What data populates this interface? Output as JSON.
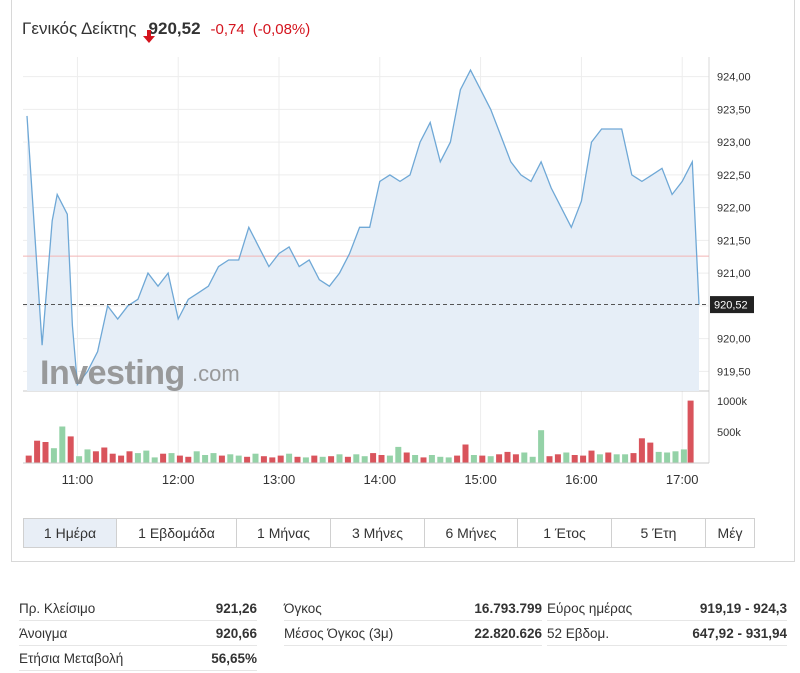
{
  "header": {
    "name": "Γενικός Δείκτης",
    "price": "920,52",
    "change": "-0,74",
    "change_pct": "(-0,08%)",
    "direction": "down",
    "down_color": "#d4141e"
  },
  "chart": {
    "watermark_main": "Investing",
    "watermark_suffix": ".com",
    "current_label": "920,52",
    "y_ticks": [
      "924,00",
      "923,50",
      "923,00",
      "922,50",
      "922,00",
      "921,50",
      "921,00",
      "920,50",
      "920,00",
      "919,50"
    ],
    "volume_ticks": [
      "1000k",
      "500k"
    ],
    "x_ticks": [
      "11:00",
      "12:00",
      "13:00",
      "14:00",
      "15:00",
      "16:00",
      "17:00"
    ],
    "line_color": "#6fa8d6",
    "fill_color": "#e6eef7",
    "prev_close_line_color": "#f2b4b4",
    "up_color": "#94d2a7",
    "down_color": "#d9545c"
  },
  "chart_data": {
    "type": "line",
    "title": "Γενικός Δείκτης",
    "x_unit": "time",
    "y_range": [
      919.2,
      924.3
    ],
    "previous_close": 921.26,
    "last": 920.52,
    "x": [
      "10:30",
      "10:39",
      "10:45",
      "10:48",
      "10:54",
      "10:57",
      "11:00",
      "11:06",
      "11:12",
      "11:18",
      "11:24",
      "11:30",
      "11:36",
      "11:42",
      "11:48",
      "11:54",
      "12:00",
      "12:06",
      "12:12",
      "12:18",
      "12:24",
      "12:30",
      "12:36",
      "12:42",
      "12:48",
      "12:54",
      "13:00",
      "13:06",
      "13:12",
      "13:18",
      "13:24",
      "13:30",
      "13:36",
      "13:42",
      "13:48",
      "13:54",
      "14:00",
      "14:06",
      "14:12",
      "14:18",
      "14:24",
      "14:30",
      "14:36",
      "14:42",
      "14:48",
      "14:54",
      "15:00",
      "15:06",
      "15:12",
      "15:18",
      "15:24",
      "15:30",
      "15:36",
      "15:42",
      "15:48",
      "15:54",
      "16:00",
      "16:06",
      "16:12",
      "16:18",
      "16:24",
      "16:30",
      "16:36",
      "16:42",
      "16:48",
      "16:54",
      "17:00",
      "17:06",
      "17:10"
    ],
    "values": [
      923.4,
      919.9,
      921.8,
      922.2,
      921.9,
      920.2,
      919.3,
      919.5,
      919.8,
      920.5,
      920.3,
      920.5,
      920.6,
      921.0,
      920.8,
      921.0,
      920.3,
      920.6,
      920.7,
      920.8,
      921.1,
      921.2,
      921.2,
      921.7,
      921.4,
      921.1,
      921.3,
      921.4,
      921.1,
      921.2,
      920.9,
      920.8,
      921.0,
      921.3,
      921.7,
      921.7,
      922.4,
      922.5,
      922.4,
      922.5,
      923.0,
      923.3,
      922.7,
      923.0,
      923.8,
      924.1,
      923.8,
      923.5,
      923.1,
      922.7,
      922.5,
      922.4,
      922.7,
      922.3,
      922.0,
      921.7,
      922.1,
      923.0,
      923.2,
      923.2,
      923.2,
      922.5,
      922.4,
      922.5,
      922.6,
      922.2,
      922.4,
      922.7,
      920.52
    ],
    "volume": {
      "unit": "shares",
      "bars": [
        {
          "t": "10:31",
          "v": 120,
          "dir": "down"
        },
        {
          "t": "10:36",
          "v": 360,
          "dir": "down"
        },
        {
          "t": "10:41",
          "v": 340,
          "dir": "down"
        },
        {
          "t": "10:46",
          "v": 240,
          "dir": "up"
        },
        {
          "t": "10:51",
          "v": 590,
          "dir": "up"
        },
        {
          "t": "10:56",
          "v": 430,
          "dir": "down"
        },
        {
          "t": "11:01",
          "v": 110,
          "dir": "up"
        },
        {
          "t": "11:06",
          "v": 220,
          "dir": "up"
        },
        {
          "t": "11:11",
          "v": 190,
          "dir": "down"
        },
        {
          "t": "11:16",
          "v": 250,
          "dir": "down"
        },
        {
          "t": "11:21",
          "v": 150,
          "dir": "down"
        },
        {
          "t": "11:26",
          "v": 120,
          "dir": "down"
        },
        {
          "t": "11:31",
          "v": 190,
          "dir": "down"
        },
        {
          "t": "11:36",
          "v": 160,
          "dir": "up"
        },
        {
          "t": "11:41",
          "v": 200,
          "dir": "up"
        },
        {
          "t": "11:46",
          "v": 90,
          "dir": "up"
        },
        {
          "t": "11:51",
          "v": 150,
          "dir": "down"
        },
        {
          "t": "11:56",
          "v": 160,
          "dir": "up"
        },
        {
          "t": "12:01",
          "v": 120,
          "dir": "down"
        },
        {
          "t": "12:06",
          "v": 100,
          "dir": "down"
        },
        {
          "t": "12:11",
          "v": 190,
          "dir": "up"
        },
        {
          "t": "12:16",
          "v": 130,
          "dir": "up"
        },
        {
          "t": "12:21",
          "v": 160,
          "dir": "up"
        },
        {
          "t": "12:26",
          "v": 120,
          "dir": "down"
        },
        {
          "t": "12:31",
          "v": 140,
          "dir": "up"
        },
        {
          "t": "12:36",
          "v": 120,
          "dir": "up"
        },
        {
          "t": "12:41",
          "v": 100,
          "dir": "down"
        },
        {
          "t": "12:46",
          "v": 150,
          "dir": "up"
        },
        {
          "t": "12:51",
          "v": 110,
          "dir": "down"
        },
        {
          "t": "12:56",
          "v": 90,
          "dir": "down"
        },
        {
          "t": "13:01",
          "v": 120,
          "dir": "down"
        },
        {
          "t": "13:06",
          "v": 150,
          "dir": "up"
        },
        {
          "t": "13:11",
          "v": 100,
          "dir": "down"
        },
        {
          "t": "13:16",
          "v": 90,
          "dir": "up"
        },
        {
          "t": "13:21",
          "v": 120,
          "dir": "down"
        },
        {
          "t": "13:26",
          "v": 100,
          "dir": "up"
        },
        {
          "t": "13:31",
          "v": 110,
          "dir": "down"
        },
        {
          "t": "13:36",
          "v": 140,
          "dir": "up"
        },
        {
          "t": "13:41",
          "v": 100,
          "dir": "down"
        },
        {
          "t": "13:46",
          "v": 140,
          "dir": "up"
        },
        {
          "t": "13:51",
          "v": 110,
          "dir": "up"
        },
        {
          "t": "13:56",
          "v": 160,
          "dir": "down"
        },
        {
          "t": "14:01",
          "v": 130,
          "dir": "down"
        },
        {
          "t": "14:06",
          "v": 120,
          "dir": "up"
        },
        {
          "t": "14:11",
          "v": 260,
          "dir": "up"
        },
        {
          "t": "14:16",
          "v": 170,
          "dir": "down"
        },
        {
          "t": "14:21",
          "v": 130,
          "dir": "up"
        },
        {
          "t": "14:26",
          "v": 90,
          "dir": "down"
        },
        {
          "t": "14:31",
          "v": 130,
          "dir": "up"
        },
        {
          "t": "14:36",
          "v": 100,
          "dir": "up"
        },
        {
          "t": "14:41",
          "v": 90,
          "dir": "up"
        },
        {
          "t": "14:46",
          "v": 120,
          "dir": "down"
        },
        {
          "t": "14:51",
          "v": 300,
          "dir": "down"
        },
        {
          "t": "14:56",
          "v": 130,
          "dir": "up"
        },
        {
          "t": "15:01",
          "v": 120,
          "dir": "down"
        },
        {
          "t": "15:06",
          "v": 110,
          "dir": "up"
        },
        {
          "t": "15:11",
          "v": 140,
          "dir": "down"
        },
        {
          "t": "15:16",
          "v": 180,
          "dir": "down"
        },
        {
          "t": "15:21",
          "v": 140,
          "dir": "down"
        },
        {
          "t": "15:26",
          "v": 170,
          "dir": "up"
        },
        {
          "t": "15:31",
          "v": 100,
          "dir": "up"
        },
        {
          "t": "15:36",
          "v": 530,
          "dir": "up"
        },
        {
          "t": "15:41",
          "v": 110,
          "dir": "down"
        },
        {
          "t": "15:46",
          "v": 140,
          "dir": "down"
        },
        {
          "t": "15:51",
          "v": 170,
          "dir": "up"
        },
        {
          "t": "15:56",
          "v": 130,
          "dir": "down"
        },
        {
          "t": "16:01",
          "v": 120,
          "dir": "down"
        },
        {
          "t": "16:06",
          "v": 200,
          "dir": "down"
        },
        {
          "t": "16:11",
          "v": 140,
          "dir": "up"
        },
        {
          "t": "16:16",
          "v": 170,
          "dir": "down"
        },
        {
          "t": "16:21",
          "v": 140,
          "dir": "up"
        },
        {
          "t": "16:26",
          "v": 140,
          "dir": "up"
        },
        {
          "t": "16:31",
          "v": 160,
          "dir": "down"
        },
        {
          "t": "16:36",
          "v": 400,
          "dir": "down"
        },
        {
          "t": "16:41",
          "v": 330,
          "dir": "down"
        },
        {
          "t": "16:46",
          "v": 180,
          "dir": "up"
        },
        {
          "t": "16:51",
          "v": 170,
          "dir": "up"
        },
        {
          "t": "16:56",
          "v": 190,
          "dir": "up"
        },
        {
          "t": "17:01",
          "v": 220,
          "dir": "up"
        },
        {
          "t": "17:05",
          "v": 1010,
          "dir": "down"
        }
      ]
    }
  },
  "tabs": [
    {
      "label": "1 Ημέρα",
      "active": true
    },
    {
      "label": "1 Εβδομάδα",
      "active": false
    },
    {
      "label": "1 Μήνας",
      "active": false
    },
    {
      "label": "3 Μήνες",
      "active": false
    },
    {
      "label": "6 Μήνες",
      "active": false
    },
    {
      "label": "1 Έτος",
      "active": false
    },
    {
      "label": "5 Έτη",
      "active": false
    },
    {
      "label": "Μέγ",
      "active": false
    }
  ],
  "stats": {
    "col1": [
      {
        "label": "Πρ. Κλείσιμο",
        "value": "921,26"
      },
      {
        "label": "Άνοιγμα",
        "value": "920,66"
      },
      {
        "label": "Ετήσια Μεταβολή",
        "value": "56,65%"
      }
    ],
    "col2": [
      {
        "label": "Όγκος",
        "value": "16.793.799"
      },
      {
        "label": "Μέσος Όγκος (3μ)",
        "value": "22.820.626"
      }
    ],
    "col3": [
      {
        "label": "Εύρος ημέρας",
        "value": "919,19 - 924,3"
      },
      {
        "label": "52 Εβδομ.",
        "value": "647,92 - 931,94"
      }
    ]
  }
}
